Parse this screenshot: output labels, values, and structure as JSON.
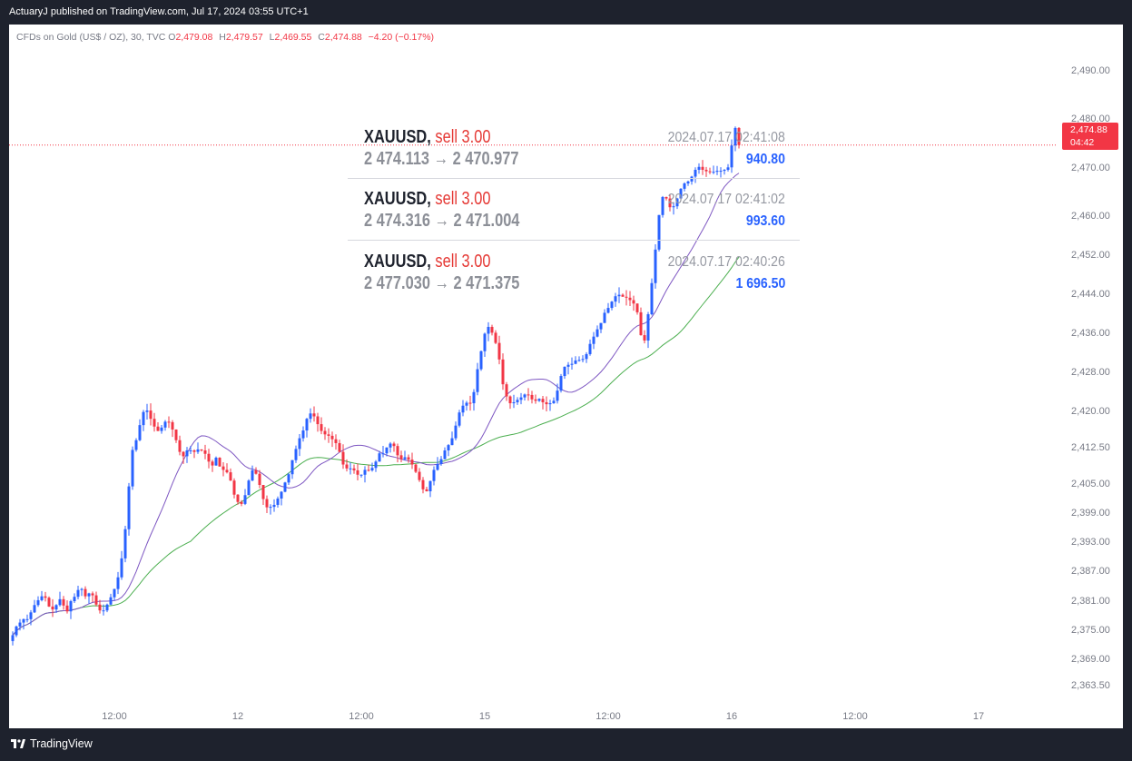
{
  "header": {
    "published": "ActuaryJ published on TradingView.com, Jul 17, 2024 03:55 UTC+1"
  },
  "legend": {
    "symbol": "CFDs on Gold (US$ / OZ), 30, TVC",
    "open_label": "O",
    "open": "2,479.08",
    "high_label": "H",
    "high": "2,479.57",
    "low_label": "L",
    "low": "2,469.55",
    "close_label": "C",
    "close": "2,474.88",
    "change": "−4.20 (−0.17%)"
  },
  "trades": [
    {
      "symbol": "XAUUSD,",
      "side": "sell 3.00",
      "route": "2 474.113 → 2 470.977",
      "time": "2024.07.17 02:41:08",
      "profit": "940.80"
    },
    {
      "symbol": "XAUUSD,",
      "side": "sell 3.00",
      "route": "2 474.316 → 2 471.004",
      "time": "2024.07.17 02:41:02",
      "profit": "993.60"
    },
    {
      "symbol": "XAUUSD,",
      "side": "sell 3.00",
      "route": "2 477.030 → 2 471.375",
      "time": "2024.07.17 02:40:26",
      "profit": "1 696.50"
    }
  ],
  "price_tag": {
    "price": "2,474.88",
    "countdown": "04:42"
  },
  "footer": {
    "brand": "TradingView"
  },
  "colors": {
    "up": "#2962ff",
    "down": "#f23645",
    "ma_fast": "#7e57c2",
    "ma_slow": "#4caf50",
    "background": "#ffffff",
    "frame": "#1e222d"
  },
  "chart_data": {
    "type": "candlestick",
    "y_ticks": [
      "2,490.00",
      "2,480.00",
      "2,470.00",
      "2,460.00",
      "2,452.00",
      "2,444.00",
      "2,436.00",
      "2,428.00",
      "2,420.00",
      "2,412.50",
      "2,405.00",
      "2,399.00",
      "2,393.00",
      "2,387.00",
      "2,381.00",
      "2,375.00",
      "2,369.00",
      "2,363.50"
    ],
    "y_tick_values": [
      2490,
      2480,
      2470,
      2460,
      2452,
      2444,
      2436,
      2428,
      2420,
      2412.5,
      2405,
      2399,
      2393,
      2387,
      2381,
      2375,
      2369,
      2363.5
    ],
    "x_ticks": [
      "12:00",
      "12",
      "12:00",
      "15",
      "12:00",
      "16",
      "12:00",
      "17"
    ],
    "x_tick_index": [
      28,
      62,
      96,
      130,
      164,
      198,
      232,
      266
    ],
    "ylim": [
      2360,
      2496.5
    ],
    "last_price": 2474.88,
    "close": [
      2374.1,
      2375.9,
      2376.7,
      2377.4,
      2377.4,
      2378.8,
      2380.3,
      2381.3,
      2382.1,
      2381.8,
      2380.0,
      2379.4,
      2380.3,
      2381.5,
      2380.2,
      2379.0,
      2381.1,
      2382.0,
      2383.4,
      2383.6,
      2382.1,
      2382.7,
      2382.3,
      2380.4,
      2379.2,
      2379.2,
      2380.4,
      2381.9,
      2383.6,
      2386.0,
      2389.9,
      2395.9,
      2404.7,
      2412.2,
      2414.2,
      2417.3,
      2420.0,
      2420.3,
      2418.6,
      2417.0,
      2416.1,
      2416.8,
      2418.0,
      2417.9,
      2416.4,
      2414.2,
      2411.8,
      2410.9,
      2412.1,
      2412.1,
      2411.8,
      2412.3,
      2412.1,
      2411.4,
      2409.8,
      2409.0,
      2410.6,
      2408.8,
      2408.1,
      2407.6,
      2405.9,
      2403.0,
      2401.5,
      2401.1,
      2402.9,
      2405.9,
      2408.0,
      2407.3,
      2405.0,
      2402.1,
      2400.4,
      2400.5,
      2400.9,
      2402.2,
      2403.6,
      2405.5,
      2407.2,
      2410.1,
      2412.4,
      2414.6,
      2416.2,
      2418.6,
      2419.7,
      2419.1,
      2417.5,
      2416.1,
      2415.4,
      2415.1,
      2414.4,
      2413.6,
      2411.8,
      2409.2,
      2408.4,
      2408.4,
      2408.0,
      2407.1,
      2407.1,
      2408.1,
      2408.0,
      2408.5,
      2409.8,
      2411.5,
      2411.5,
      2412.7,
      2413.5,
      2413.0,
      2411.1,
      2410.3,
      2410.7,
      2410.2,
      2409.2,
      2407.7,
      2406.0,
      2404.1,
      2403.7,
      2405.8,
      2408.1,
      2409.3,
      2410.3,
      2412.1,
      2413.2,
      2414.6,
      2417.2,
      2419.9,
      2421.3,
      2421.9,
      2421.8,
      2424.1,
      2428.8,
      2432.5,
      2436.1,
      2437.5,
      2436.3,
      2434.2,
      2430.8,
      2425.7,
      2423.2,
      2421.8,
      2422.0,
      2422.5,
      2423.0,
      2423.6,
      2423.5,
      2422.6,
      2422.3,
      2422.7,
      2422.0,
      2421.6,
      2421.8,
      2422.3,
      2424.4,
      2427.4,
      2429.3,
      2429.7,
      2429.9,
      2430.6,
      2430.7,
      2430.9,
      2431.9,
      2434.0,
      2435.5,
      2437.0,
      2438.3,
      2440.4,
      2441.4,
      2442.7,
      2443.8,
      2444.1,
      2443.7,
      2443.5,
      2443.0,
      2442.3,
      2440.5,
      2435.8,
      2434.7,
      2440.1,
      2446.5,
      2453.4,
      2460.5,
      2464.2,
      2463.9,
      2462.1,
      2462.3,
      2463.9,
      2465.9,
      2467.0,
      2467.4,
      2468.4,
      2469.8,
      2470.4,
      2469.8,
      2469.5,
      2469.3,
      2469.4,
      2469.6,
      2469.6,
      2469.8,
      2470.3,
      2474.8,
      2478.4,
      2474.9
    ],
    "open_seed": "derived: previous close",
    "ma_fast_period": 20,
    "ma_slow_period": 50,
    "series": [
      {
        "name": "candles"
      },
      {
        "name": "MA"
      },
      {
        "name": "MA"
      }
    ]
  }
}
